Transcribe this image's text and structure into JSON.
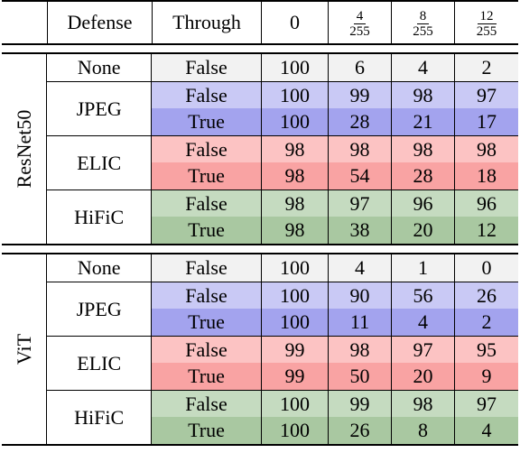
{
  "header": {
    "defense": "Defense",
    "through": "Through",
    "eps0": "0",
    "eps1": {
      "num": "4",
      "den": "255"
    },
    "eps2": {
      "num": "8",
      "den": "255"
    },
    "eps3": {
      "num": "12",
      "den": "255"
    }
  },
  "blocks": [
    {
      "model": "ResNet50",
      "defenses": [
        {
          "name": "None",
          "rows": [
            {
              "through": "False",
              "values": [
                "100",
                "6",
                "4",
                "2"
              ]
            }
          ]
        },
        {
          "name": "JPEG",
          "rows": [
            {
              "through": "False",
              "values": [
                "100",
                "99",
                "98",
                "97"
              ]
            },
            {
              "through": "True",
              "values": [
                "100",
                "28",
                "21",
                "17"
              ]
            }
          ]
        },
        {
          "name": "ELIC",
          "rows": [
            {
              "through": "False",
              "values": [
                "98",
                "98",
                "98",
                "98"
              ]
            },
            {
              "through": "True",
              "values": [
                "98",
                "54",
                "28",
                "18"
              ]
            }
          ]
        },
        {
          "name": "HiFiC",
          "rows": [
            {
              "through": "False",
              "values": [
                "98",
                "97",
                "96",
                "96"
              ]
            },
            {
              "through": "True",
              "values": [
                "98",
                "38",
                "20",
                "12"
              ]
            }
          ]
        }
      ]
    },
    {
      "model": "ViT",
      "defenses": [
        {
          "name": "None",
          "rows": [
            {
              "through": "False",
              "values": [
                "100",
                "4",
                "1",
                "0"
              ]
            }
          ]
        },
        {
          "name": "JPEG",
          "rows": [
            {
              "through": "False",
              "values": [
                "100",
                "90",
                "56",
                "26"
              ]
            },
            {
              "through": "True",
              "values": [
                "100",
                "11",
                "4",
                "2"
              ]
            }
          ]
        },
        {
          "name": "ELIC",
          "rows": [
            {
              "through": "False",
              "values": [
                "99",
                "98",
                "97",
                "95"
              ]
            },
            {
              "through": "True",
              "values": [
                "99",
                "50",
                "20",
                "9"
              ]
            }
          ]
        },
        {
          "name": "HiFiC",
          "rows": [
            {
              "through": "False",
              "values": [
                "100",
                "99",
                "98",
                "97"
              ]
            },
            {
              "through": "True",
              "values": [
                "100",
                "26",
                "8",
                "4"
              ]
            }
          ]
        }
      ]
    }
  ],
  "colors": {
    "None": [
      "#f2f2f2"
    ],
    "JPEG": [
      "#c9c9f5",
      "#a3a3ee"
    ],
    "ELIC": [
      "#fcc3c3",
      "#f9a3a3"
    ],
    "HiFiC": [
      "#c5dbc0",
      "#a9c8a1"
    ]
  }
}
